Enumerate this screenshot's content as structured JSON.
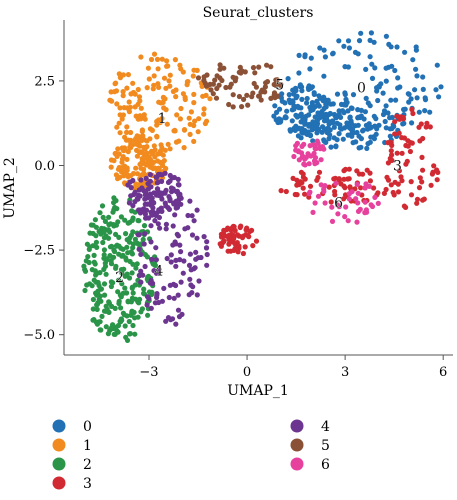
{
  "chart_data": {
    "type": "scatter",
    "title": "Seurat_clusters",
    "xlabel": "UMAP_1",
    "ylabel": "UMAP_2",
    "xlim": [
      -5.6,
      6.3
    ],
    "ylim": [
      -5.6,
      4.3
    ],
    "xticks": [
      -3,
      0,
      3,
      6
    ],
    "xtick_labels": [
      "−3",
      "0",
      "3",
      "6"
    ],
    "yticks": [
      -5.0,
      -2.5,
      0.0,
      2.5
    ],
    "ytick_labels": [
      "−5.0",
      "−2.5",
      "0.0",
      "2.5"
    ],
    "grid": false,
    "legend_position": "bottom",
    "clusters": [
      {
        "name": "0",
        "color": "#2271b5",
        "label_at": [
          3.5,
          2.3
        ],
        "n": 360,
        "regions": [
          [
            3.6,
            2.4,
            2.4,
            1.6
          ],
          [
            1.8,
            1.6,
            1.0,
            0.8
          ],
          [
            3.2,
            1.2,
            1.6,
            0.8
          ]
        ]
      },
      {
        "name": "1",
        "color": "#f28b1f",
        "label_at": [
          -2.6,
          1.4
        ],
        "n": 300,
        "regions": [
          [
            -2.7,
            1.8,
            1.6,
            1.5
          ],
          [
            -3.3,
            0.1,
            0.9,
            0.8
          ]
        ]
      },
      {
        "name": "2",
        "color": "#2a9448",
        "label_at": [
          -3.9,
          -3.3
        ],
        "n": 280,
        "regions": [
          [
            -3.9,
            -3.1,
            1.1,
            2.2
          ]
        ]
      },
      {
        "name": "3",
        "color": "#d12a32",
        "label_at": [
          4.6,
          0.0
        ],
        "n": 200,
        "regions": [
          [
            5.0,
            0.2,
            0.9,
            1.5
          ],
          [
            2.7,
            -0.6,
            1.8,
            0.6
          ],
          [
            -0.3,
            -2.2,
            0.6,
            0.45
          ]
        ]
      },
      {
        "name": "4",
        "color": "#6b3590",
        "label_at": [
          -2.7,
          -3.1
        ],
        "n": 220,
        "regions": [
          [
            -2.3,
            -2.7,
            1.1,
            2.0
          ],
          [
            -2.8,
            -0.8,
            0.9,
            0.7
          ]
        ]
      },
      {
        "name": "5",
        "color": "#8b5136",
        "label_at": [
          1.0,
          2.4
        ],
        "n": 70,
        "regions": [
          [
            -0.2,
            2.4,
            1.4,
            0.7
          ]
        ]
      },
      {
        "name": "6",
        "color": "#e6429d",
        "label_at": [
          2.8,
          -1.1
        ],
        "n": 80,
        "regions": [
          [
            2.9,
            -1.1,
            1.3,
            0.7
          ],
          [
            1.9,
            0.4,
            0.5,
            0.4
          ]
        ]
      }
    ],
    "legend_entries": [
      "0",
      "1",
      "2",
      "3",
      "4",
      "5",
      "6"
    ]
  }
}
